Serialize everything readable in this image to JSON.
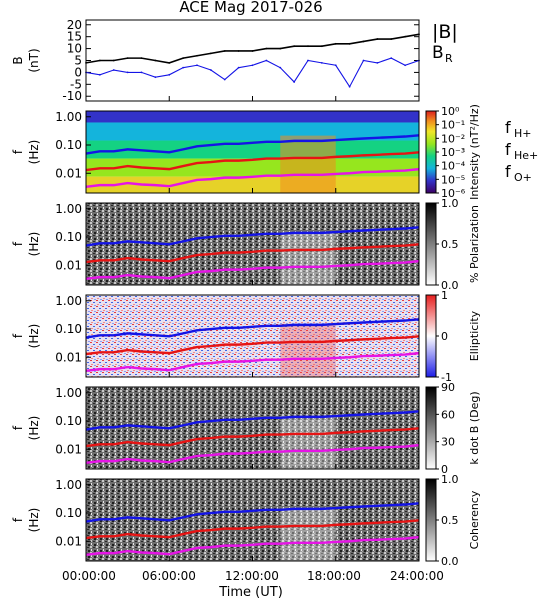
{
  "chart_data": [
    {
      "type": "line",
      "title": "ACE Mag 2017-026",
      "ylabel": "B (nT)",
      "ylim": [
        -12,
        22
      ],
      "yticks": [
        "20",
        "15",
        "10",
        "5",
        "0",
        "-5",
        "-10"
      ],
      "series": [
        {
          "name": "|B|",
          "color": "#000000",
          "x": [
            0,
            1,
            2,
            3,
            4,
            5,
            6,
            7,
            8,
            9,
            10,
            11,
            12,
            13,
            14,
            15,
            16,
            17,
            18,
            19,
            20,
            21,
            22,
            23,
            24
          ],
          "values": [
            4,
            5,
            5,
            6,
            6,
            5,
            4,
            6,
            7,
            8,
            9,
            9,
            9,
            10,
            10,
            11,
            11,
            11,
            12,
            12,
            13,
            14,
            14,
            15,
            16
          ]
        },
        {
          "name": "B_R",
          "color": "#1414e6",
          "x": [
            0,
            1,
            2,
            3,
            4,
            5,
            6,
            7,
            8,
            9,
            10,
            11,
            12,
            13,
            14,
            15,
            16,
            17,
            18,
            19,
            20,
            21,
            22,
            23,
            24
          ],
          "values": [
            0,
            -1,
            1,
            0,
            0,
            -2,
            -1,
            2,
            3,
            1,
            -3,
            2,
            3,
            5,
            2,
            -4,
            5,
            4,
            3,
            -6,
            5,
            4,
            6,
            3,
            5
          ]
        }
      ]
    },
    {
      "type": "heatmap",
      "ylabel": "f (Hz)",
      "yticks": [
        "1.00",
        "0.10",
        "0.01"
      ],
      "colorbar": {
        "label": "Intensity (nT²/Hz)",
        "ticks": [
          "10⁰",
          "10⁻¹",
          "10⁻²",
          "10⁻³",
          "10⁻⁴",
          "10⁻⁵",
          "10⁻⁶"
        ]
      },
      "legend": [
        {
          "label": "f",
          "sub": "H+",
          "color": "#1414e6"
        },
        {
          "label": "f",
          "sub": "He+",
          "color": "#e61414"
        },
        {
          "label": "f",
          "sub": "O+",
          "color": "#e614e6"
        }
      ]
    },
    {
      "type": "heatmap",
      "ylabel": "f (Hz)",
      "yticks": [
        "1.00",
        "0.10",
        "0.01"
      ],
      "colorbar": {
        "label": "% Polarization",
        "ticks": [
          "1.0",
          "0.5",
          "0.0"
        ]
      }
    },
    {
      "type": "heatmap",
      "ylabel": "f (Hz)",
      "yticks": [
        "1.00",
        "0.10",
        "0.01"
      ],
      "colorbar": {
        "label": "Ellipticity",
        "ticks": [
          "1",
          "0",
          "-1"
        ]
      }
    },
    {
      "type": "heatmap",
      "ylabel": "f (Hz)",
      "yticks": [
        "1.00",
        "0.10",
        "0.01"
      ],
      "colorbar": {
        "label": "k dot B (Deg)",
        "ticks": [
          "90",
          "60",
          "30",
          "0"
        ]
      }
    },
    {
      "type": "heatmap",
      "ylabel": "f (Hz)",
      "yticks": [
        "1.00",
        "0.10",
        "0.01"
      ],
      "colorbar": {
        "label": "Coherency",
        "ticks": [
          "1.0",
          "0.5",
          "0.0"
        ]
      },
      "xlabel": "Time (UT)",
      "xticks": [
        "00:00:00",
        "06:00:00",
        "12:00:00",
        "18:00:00",
        "24:00:00"
      ]
    }
  ],
  "cyclotron_lines": {
    "x": [
      0,
      1,
      2,
      3,
      4,
      5,
      6,
      7,
      8,
      9,
      10,
      11,
      12,
      13,
      14,
      15,
      16,
      17,
      18,
      19,
      20,
      21,
      22,
      23,
      24
    ],
    "H": [
      0.05,
      0.06,
      0.06,
      0.07,
      0.065,
      0.06,
      0.055,
      0.07,
      0.09,
      0.1,
      0.11,
      0.11,
      0.12,
      0.13,
      0.13,
      0.14,
      0.14,
      0.14,
      0.15,
      0.16,
      0.17,
      0.18,
      0.19,
      0.2,
      0.22
    ],
    "He": [
      0.013,
      0.015,
      0.015,
      0.018,
      0.016,
      0.015,
      0.014,
      0.018,
      0.023,
      0.025,
      0.028,
      0.028,
      0.03,
      0.033,
      0.033,
      0.035,
      0.035,
      0.035,
      0.038,
      0.04,
      0.043,
      0.045,
      0.048,
      0.05,
      0.055
    ],
    "O": [
      0.0033,
      0.0038,
      0.0038,
      0.0045,
      0.004,
      0.0038,
      0.0035,
      0.0045,
      0.0058,
      0.0062,
      0.007,
      0.007,
      0.0075,
      0.0082,
      0.0082,
      0.0088,
      0.0088,
      0.0088,
      0.0095,
      0.01,
      0.011,
      0.0113,
      0.012,
      0.0125,
      0.014
    ]
  }
}
